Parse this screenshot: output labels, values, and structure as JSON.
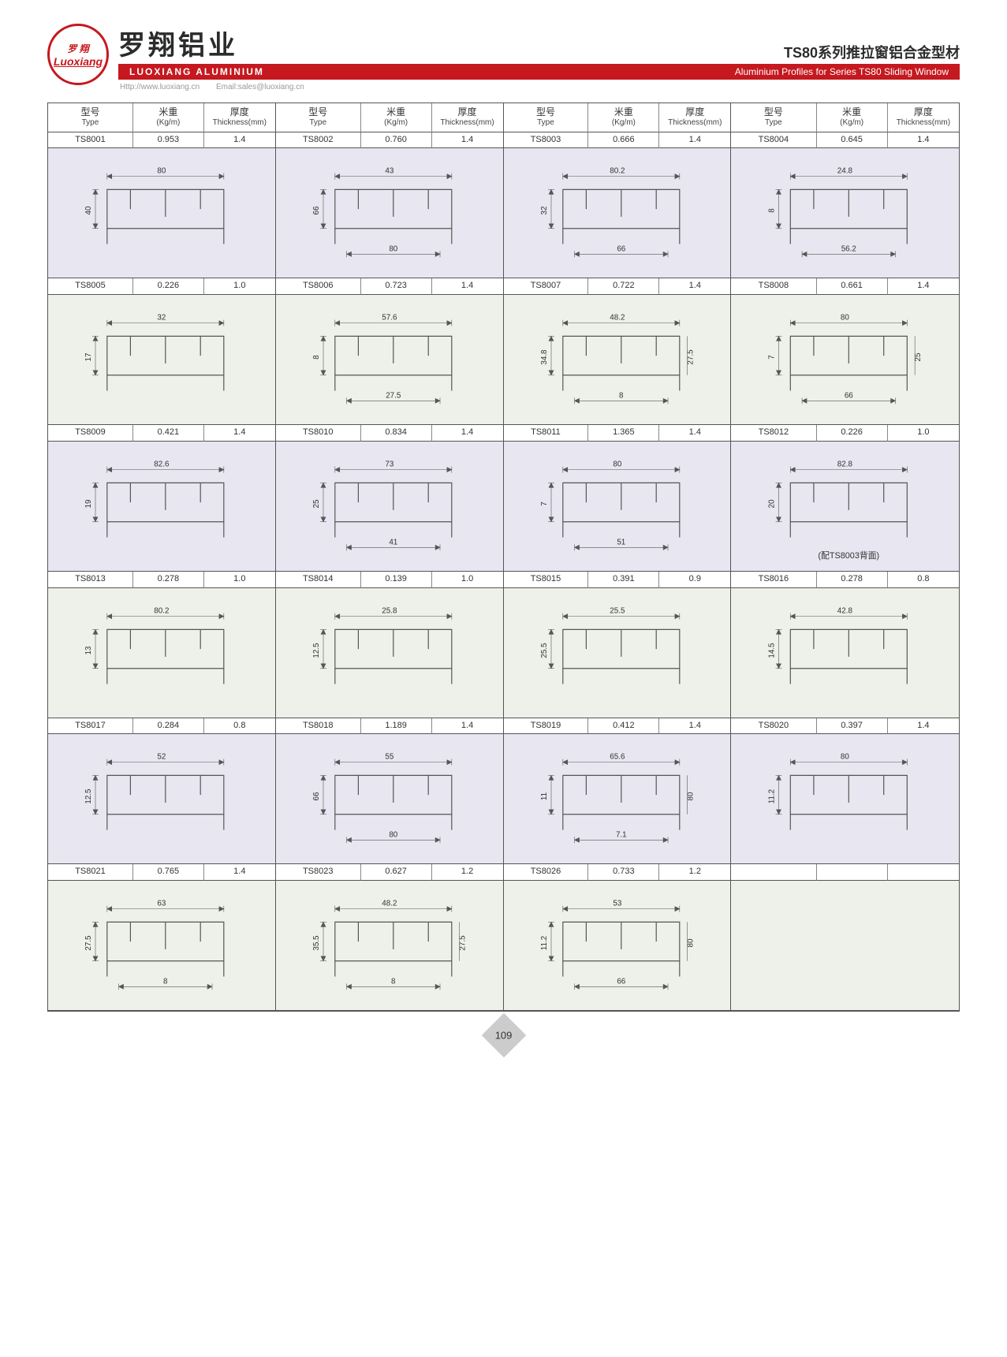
{
  "header": {
    "logo_cn": "罗 翔",
    "logo_en": "Luoxiang",
    "brand_cn": "罗翔铝业",
    "brand_en": "LUOXIANG ALUMINIUM",
    "series_cn": "TS80系列推拉窗铝合金型材",
    "series_en": "Aluminium Profiles for Series TS80 Sliding Window",
    "url": "Http://www.luoxiang.cn",
    "email": "Email:sales@luoxiang.cn"
  },
  "columns": {
    "type_cn": "型号",
    "type_en": "Type",
    "weight_cn": "米重",
    "weight_en": "(Kg/m)",
    "thick_cn": "厚度",
    "thick_en": "Thickness(mm)"
  },
  "rows": [
    {
      "bg": "bgA",
      "items": [
        {
          "type": "TS8001",
          "kg": "0.953",
          "t": "1.4",
          "dims": [
            "80",
            "40"
          ]
        },
        {
          "type": "TS8002",
          "kg": "0.760",
          "t": "1.4",
          "dims": [
            "43",
            "66",
            "80"
          ]
        },
        {
          "type": "TS8003",
          "kg": "0.666",
          "t": "1.4",
          "dims": [
            "80.2",
            "32",
            "66"
          ]
        },
        {
          "type": "TS8004",
          "kg": "0.645",
          "t": "1.4",
          "dims": [
            "24.8",
            "8",
            "56.2"
          ]
        }
      ]
    },
    {
      "bg": "bgB",
      "items": [
        {
          "type": "TS8005",
          "kg": "0.226",
          "t": "1.0",
          "dims": [
            "32",
            "17"
          ]
        },
        {
          "type": "TS8006",
          "kg": "0.723",
          "t": "1.4",
          "dims": [
            "57.6",
            "8",
            "27.5"
          ]
        },
        {
          "type": "TS8007",
          "kg": "0.722",
          "t": "1.4",
          "dims": [
            "48.2",
            "34.8",
            "8",
            "27.5"
          ]
        },
        {
          "type": "TS8008",
          "kg": "0.661",
          "t": "1.4",
          "dims": [
            "80",
            "7",
            "66",
            "25"
          ]
        }
      ]
    },
    {
      "bg": "bgA",
      "items": [
        {
          "type": "TS8009",
          "kg": "0.421",
          "t": "1.4",
          "dims": [
            "82.6",
            "19"
          ]
        },
        {
          "type": "TS8010",
          "kg": "0.834",
          "t": "1.4",
          "dims": [
            "73",
            "25",
            "41"
          ]
        },
        {
          "type": "TS8011",
          "kg": "1.365",
          "t": "1.4",
          "dims": [
            "80",
            "7",
            "51"
          ]
        },
        {
          "type": "TS8012",
          "kg": "0.226",
          "t": "1.0",
          "dims": [
            "82.8",
            "20"
          ],
          "note": "(配TS8003背面)"
        }
      ]
    },
    {
      "bg": "bgB",
      "items": [
        {
          "type": "TS8013",
          "kg": "0.278",
          "t": "1.0",
          "dims": [
            "80.2",
            "13"
          ]
        },
        {
          "type": "TS8014",
          "kg": "0.139",
          "t": "1.0",
          "dims": [
            "25.8",
            "12.5"
          ]
        },
        {
          "type": "TS8015",
          "kg": "0.391",
          "t": "0.9",
          "dims": [
            "25.5",
            "25.5"
          ]
        },
        {
          "type": "TS8016",
          "kg": "0.278",
          "t": "0.8",
          "dims": [
            "42.8",
            "14.5"
          ]
        }
      ]
    },
    {
      "bg": "bgA",
      "items": [
        {
          "type": "TS8017",
          "kg": "0.284",
          "t": "0.8",
          "dims": [
            "52",
            "12.5"
          ]
        },
        {
          "type": "TS8018",
          "kg": "1.189",
          "t": "1.4",
          "dims": [
            "55",
            "66",
            "80"
          ]
        },
        {
          "type": "TS8019",
          "kg": "0.412",
          "t": "1.4",
          "dims": [
            "65.6",
            "11",
            "7.1",
            "80"
          ]
        },
        {
          "type": "TS8020",
          "kg": "0.397",
          "t": "1.4",
          "dims": [
            "80",
            "11.2"
          ]
        }
      ]
    },
    {
      "bg": "bgB",
      "items": [
        {
          "type": "TS8021",
          "kg": "0.765",
          "t": "1.4",
          "dims": [
            "63",
            "27.5",
            "8"
          ]
        },
        {
          "type": "TS8023",
          "kg": "0.627",
          "t": "1.2",
          "dims": [
            "48.2",
            "35.5",
            "8",
            "27.5"
          ]
        },
        {
          "type": "TS8026",
          "kg": "0.733",
          "t": "1.2",
          "dims": [
            "53",
            "11.2",
            "66",
            "80"
          ]
        },
        null
      ]
    }
  ],
  "page_number": "109",
  "colors": {
    "accent": "#c5181f",
    "border": "#555555",
    "bgA": "#e7e6f1",
    "bgB": "#edf1e9"
  }
}
